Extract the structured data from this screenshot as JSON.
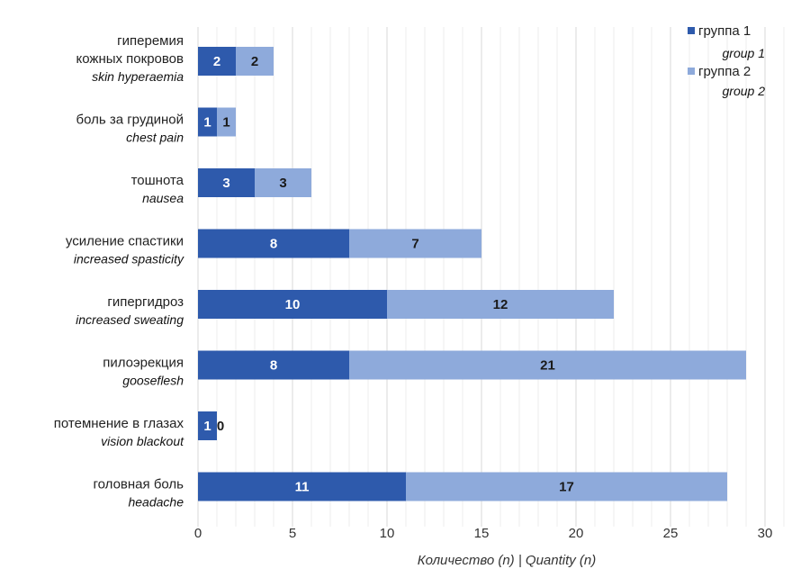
{
  "chart_data": {
    "type": "bar",
    "orientation": "horizontal",
    "stacked": true,
    "categories": [
      {
        "ru": "гиперемия кожных покровов",
        "ru_lines": [
          "гиперемия",
          "кожных покровов"
        ],
        "en": "skin hyperaemia"
      },
      {
        "ru": "боль за грудиной",
        "ru_lines": [
          "боль за грудиной"
        ],
        "en": "chest pain"
      },
      {
        "ru": "тошнота",
        "ru_lines": [
          "тошнота"
        ],
        "en": "nausea"
      },
      {
        "ru": "усиление спастики",
        "ru_lines": [
          "усиление спастики"
        ],
        "en": "increased spasticity"
      },
      {
        "ru": "гипергидроз",
        "ru_lines": [
          "гипергидроз"
        ],
        "en": "increased sweating"
      },
      {
        "ru": "пилоэрекция",
        "ru_lines": [
          "пилоэрекция"
        ],
        "en": "gooseflesh"
      },
      {
        "ru": "потемнение в глазах",
        "ru_lines": [
          "потемнение в глазах"
        ],
        "en": "vision blackout"
      },
      {
        "ru": "головная боль",
        "ru_lines": [
          "головная боль"
        ],
        "en": "headache"
      }
    ],
    "series": [
      {
        "name": "группа 1",
        "name_en": "group 1",
        "color": "#2e5aac",
        "label_color": "#ffffff",
        "values": [
          2,
          1,
          3,
          8,
          10,
          8,
          1,
          11
        ]
      },
      {
        "name": "группа 2",
        "name_en": "group 2",
        "color": "#8eaadb",
        "label_color": "#1a1a1a",
        "values": [
          2,
          1,
          3,
          7,
          12,
          21,
          0,
          17
        ]
      }
    ],
    "xlabel": "Количество (n) | Quantity (n)",
    "xlim": [
      0,
      31
    ],
    "xticks": [
      0,
      5,
      10,
      15,
      20,
      25,
      30
    ],
    "grid": "vertical minor lines",
    "legend_position": "top-right"
  }
}
